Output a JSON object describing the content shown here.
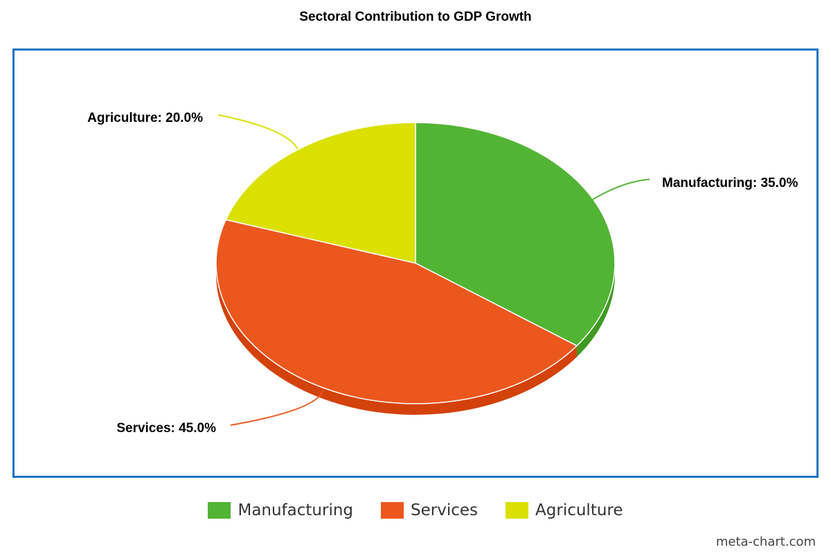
{
  "chart_data": {
    "type": "pie",
    "title": "Sectoral Contribution to GDP Growth",
    "slices": [
      {
        "name": "Manufacturing",
        "value": 35.0,
        "label": "Manufacturing: 35.0%",
        "color": "#52b434",
        "side_color": "#3e9a22"
      },
      {
        "name": "Services",
        "value": 45.0,
        "label": "Services: 45.0%",
        "color": "#ec571e",
        "side_color": "#d4420c"
      },
      {
        "name": "Agriculture",
        "value": 20.0,
        "label": "Agriculture: 20.0%",
        "color": "#dce000",
        "side_color": "#c4c800"
      }
    ],
    "legend_position": "bottom-center",
    "style": "3d-tilted"
  },
  "frame_color": "#1874c1",
  "credit": "meta-chart.com"
}
